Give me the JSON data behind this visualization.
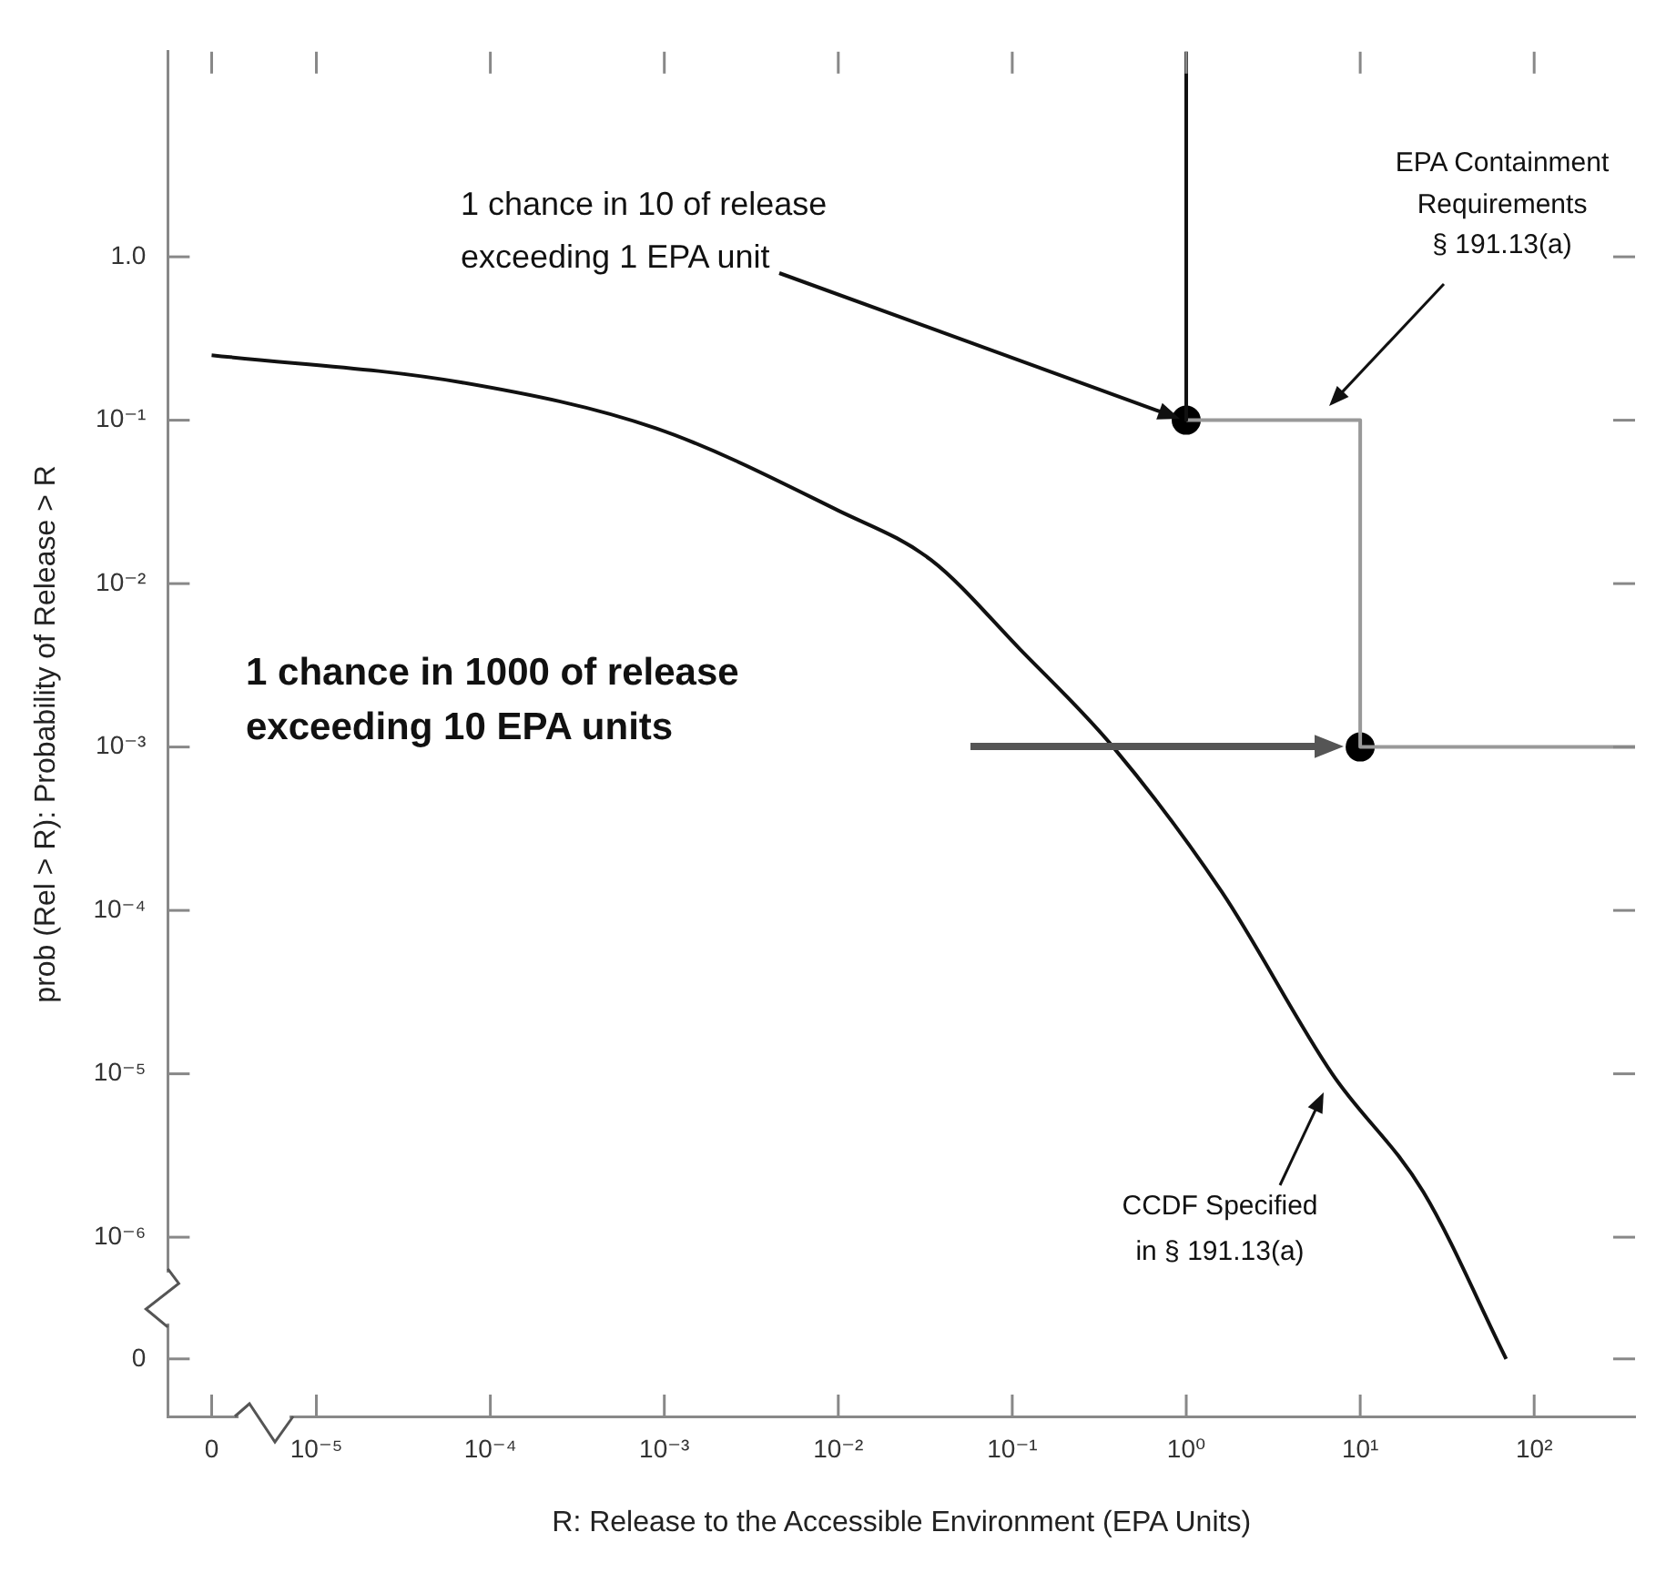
{
  "chart_data": {
    "type": "line",
    "xlabel": "R: Release to the Accessible Environment (EPA Units)",
    "ylabel": "prob (Rel > R): Probability of Release > R",
    "log": "xy",
    "grid": false,
    "xlim": [
      1.4e-06,
      380
    ],
    "ylim": [
      8e-08,
      18
    ],
    "xticks": [
      {
        "value": 2.5e-06,
        "label": "0"
      },
      {
        "value": 1e-05,
        "label": "10⁻⁵"
      },
      {
        "value": 0.0001,
        "label": "10⁻⁴"
      },
      {
        "value": 0.001,
        "label": "10⁻³"
      },
      {
        "value": 0.01,
        "label": "10⁻²"
      },
      {
        "value": 0.1,
        "label": "10⁻¹"
      },
      {
        "value": 1,
        "label": "10⁰"
      },
      {
        "value": 10,
        "label": "10¹"
      },
      {
        "value": 100,
        "label": "10²"
      }
    ],
    "yticks": [
      {
        "value": 1.8e-07,
        "label": "0"
      },
      {
        "value": 1e-06,
        "label": "10⁻⁶"
      },
      {
        "value": 1e-05,
        "label": "10⁻⁵"
      },
      {
        "value": 0.0001,
        "label": "10⁻⁴"
      },
      {
        "value": 0.001,
        "label": "10⁻³"
      },
      {
        "value": 0.01,
        "label": "10⁻²"
      },
      {
        "value": 0.1,
        "label": "10⁻¹"
      },
      {
        "value": 1,
        "label": "1.0"
      }
    ],
    "series": [
      {
        "color": "#111111",
        "marker": "none",
        "x": [
          2.5e-06,
          6.9e-05,
          0.0009,
          0.01,
          0.034,
          0.11,
          0.38,
          1.6,
          6.9,
          23,
          69
        ],
        "values": [
          0.25,
          0.17,
          0.089,
          0.028,
          0.014,
          0.004,
          0.001,
          0.00013,
          1e-05,
          1.9e-06,
          1.8e-07
        ]
      },
      {
        "color": "#111111",
        "marker": "none",
        "x": [
          1,
          1
        ],
        "values": [
          18,
          0.1
        ]
      },
      {
        "color": "#999999",
        "marker": "none",
        "x": [
          1,
          10,
          10,
          380
        ],
        "values": [
          0.1,
          0.1,
          0.001,
          0.001
        ]
      },
      {
        "type": "scatter",
        "color": "#000000",
        "marker": "circle",
        "x": [
          1,
          10
        ],
        "values": [
          0.1,
          0.001
        ]
      }
    ],
    "annotations": [
      "1 chance in 10 of release\nexceeding 1 EPA unit",
      "1 chance in 1000 of release\nexceeding 10 EPA units",
      "EPA Containment\nRequirements\n§ 191.13(a)",
      "CCDF Specified\nin § 191.13(a)"
    ]
  }
}
